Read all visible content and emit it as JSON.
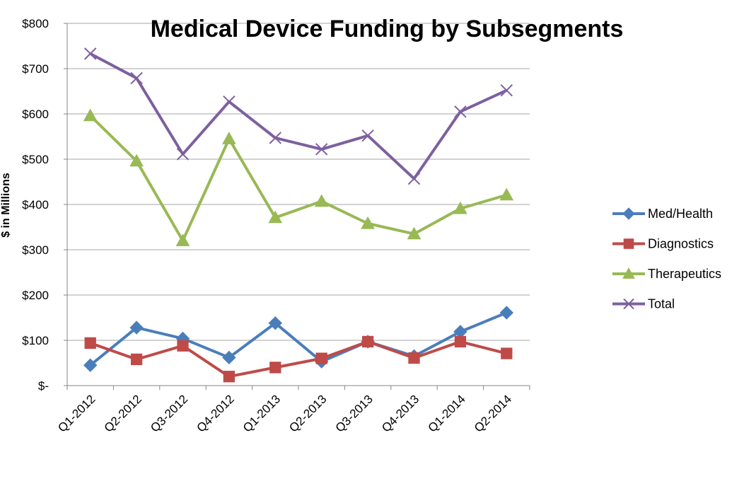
{
  "chart_data": {
    "type": "line",
    "title": "Medical Device Funding by Subsegments",
    "xlabel": "",
    "ylabel": "$ in Millions",
    "ylim": [
      0,
      800
    ],
    "yticks": [
      {
        "value": 0,
        "label": "$-"
      },
      {
        "value": 100,
        "label": "$100"
      },
      {
        "value": 200,
        "label": "$200"
      },
      {
        "value": 300,
        "label": "$300"
      },
      {
        "value": 400,
        "label": "$400"
      },
      {
        "value": 500,
        "label": "$500"
      },
      {
        "value": 600,
        "label": "$600"
      },
      {
        "value": 700,
        "label": "$700"
      },
      {
        "value": 800,
        "label": "$800"
      }
    ],
    "categories": [
      "Q1-2012",
      "Q2-2012",
      "Q3-2012",
      "Q4-2012",
      "Q1-2013",
      "Q2-2013",
      "Q3-2013",
      "Q4-2013",
      "Q1-2014",
      "Q2-2014"
    ],
    "grid": true,
    "legend_position": "right",
    "series": [
      {
        "name": "Med/Health",
        "color": "#4a7ebb",
        "marker": "diamond",
        "values": [
          45,
          128,
          104,
          62,
          138,
          53,
          97,
          65,
          119,
          161
        ]
      },
      {
        "name": "Diagnostics",
        "color": "#be4b48",
        "marker": "square",
        "values": [
          94,
          58,
          88,
          20,
          40,
          60,
          97,
          61,
          97,
          71
        ]
      },
      {
        "name": "Therapeutics",
        "color": "#98b954",
        "marker": "triangle",
        "values": [
          596,
          496,
          320,
          545,
          371,
          407,
          358,
          335,
          391,
          421
        ]
      },
      {
        "name": "Total",
        "color": "#7d60a0",
        "marker": "x",
        "values": [
          733,
          679,
          511,
          627,
          547,
          522,
          552,
          457,
          605,
          652
        ]
      }
    ]
  }
}
